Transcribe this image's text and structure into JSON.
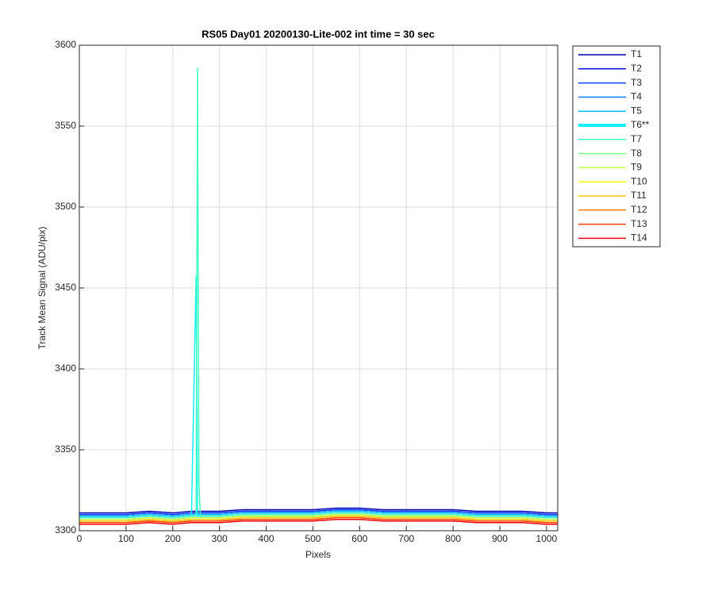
{
  "chart_data": {
    "type": "line",
    "title": "RS05 Day01 20200130-Lite-002 int time = 30 sec",
    "x_label": "Pixels",
    "y_label": "Track Mean Signal (ADU/pix)",
    "xlim": [
      0,
      1024
    ],
    "ylim": [
      3300,
      3600
    ],
    "xticks": [
      0,
      100,
      200,
      300,
      400,
      500,
      600,
      700,
      800,
      900,
      1000
    ],
    "yticks": [
      3300,
      3350,
      3400,
      3450,
      3500,
      3550,
      3600
    ],
    "grid": true,
    "legend": "outside-right",
    "x": [
      0,
      50,
      100,
      150,
      200,
      240,
      250,
      253,
      256,
      259,
      265,
      300,
      350,
      400,
      450,
      500,
      550,
      600,
      650,
      700,
      750,
      800,
      850,
      900,
      950,
      1000,
      1023
    ],
    "series": [
      {
        "name": "T1",
        "color": "#0000b4",
        "width": 1.5,
        "values": [
          3311,
          3311,
          3311,
          3312,
          3311,
          3312,
          3312,
          3312,
          3312,
          3312,
          3312,
          3312,
          3313,
          3313,
          3313,
          3313,
          3314,
          3314,
          3313,
          3313,
          3313,
          3313,
          3312,
          3312,
          3312,
          3311,
          3311
        ]
      },
      {
        "name": "T2",
        "color": "#0010dc",
        "width": 1.5,
        "values": [
          3310,
          3310,
          3310,
          3311,
          3310,
          3311,
          3311,
          3311,
          3311,
          3311,
          3311,
          3311,
          3312,
          3312,
          3312,
          3312,
          3313,
          3313,
          3312,
          3312,
          3312,
          3312,
          3311,
          3311,
          3311,
          3310,
          3310
        ]
      },
      {
        "name": "T3",
        "color": "#0040ff",
        "width": 1.5,
        "values": [
          3310,
          3310,
          3310,
          3311,
          3310,
          3311,
          3311,
          3311,
          3311,
          3311,
          3311,
          3311,
          3312,
          3312,
          3312,
          3312,
          3313,
          3313,
          3312,
          3312,
          3312,
          3312,
          3311,
          3311,
          3311,
          3310,
          3310
        ]
      },
      {
        "name": "T4",
        "color": "#0080ff",
        "width": 1.5,
        "values": [
          3309,
          3309,
          3309,
          3310,
          3309,
          3310,
          3310,
          3310,
          3310,
          3310,
          3310,
          3310,
          3311,
          3311,
          3311,
          3311,
          3312,
          3312,
          3311,
          3311,
          3311,
          3311,
          3310,
          3310,
          3310,
          3309,
          3309
        ]
      },
      {
        "name": "T5",
        "color": "#00c0ff",
        "width": 1.5,
        "values": [
          3309,
          3309,
          3309,
          3310,
          3309,
          3310,
          3310,
          3310,
          3310,
          3310,
          3310,
          3310,
          3311,
          3311,
          3311,
          3311,
          3312,
          3312,
          3311,
          3311,
          3311,
          3311,
          3310,
          3310,
          3310,
          3309,
          3309
        ]
      },
      {
        "name": "T6**",
        "color": "#10f0ff",
        "width": 4,
        "values": [
          3308,
          3308,
          3308,
          3309,
          3308,
          3309,
          3457,
          3309,
          3309,
          3309,
          3309,
          3309,
          3310,
          3310,
          3310,
          3310,
          3311,
          3311,
          3310,
          3310,
          3310,
          3310,
          3309,
          3309,
          3309,
          3308,
          3308
        ]
      },
      {
        "name": "T7",
        "color": "#40ffc0",
        "width": 1.5,
        "values": [
          3308,
          3308,
          3308,
          3309,
          3308,
          3309,
          3309,
          3586,
          3330,
          3309,
          3309,
          3309,
          3310,
          3310,
          3310,
          3310,
          3311,
          3311,
          3310,
          3310,
          3310,
          3310,
          3309,
          3309,
          3309,
          3308,
          3308
        ]
      },
      {
        "name": "T8",
        "color": "#80ff80",
        "width": 1.5,
        "values": [
          3307,
          3307,
          3307,
          3308,
          3307,
          3308,
          3308,
          3308,
          3308,
          3308,
          3308,
          3308,
          3309,
          3309,
          3309,
          3309,
          3310,
          3310,
          3309,
          3309,
          3309,
          3309,
          3308,
          3308,
          3308,
          3307,
          3307
        ]
      },
      {
        "name": "T9",
        "color": "#c0ff40",
        "width": 1.5,
        "values": [
          3307,
          3307,
          3307,
          3308,
          3307,
          3308,
          3308,
          3308,
          3308,
          3308,
          3308,
          3308,
          3309,
          3309,
          3309,
          3309,
          3310,
          3310,
          3309,
          3309,
          3309,
          3309,
          3308,
          3308,
          3308,
          3307,
          3307
        ]
      },
      {
        "name": "T10",
        "color": "#ffff00",
        "width": 1.5,
        "values": [
          3306,
          3306,
          3306,
          3307,
          3306,
          3307,
          3307,
          3307,
          3307,
          3307,
          3307,
          3307,
          3308,
          3308,
          3308,
          3308,
          3309,
          3309,
          3308,
          3308,
          3308,
          3308,
          3307,
          3307,
          3307,
          3306,
          3306
        ]
      },
      {
        "name": "T11",
        "color": "#ffc000",
        "width": 1.5,
        "values": [
          3306,
          3306,
          3306,
          3307,
          3306,
          3307,
          3307,
          3307,
          3307,
          3307,
          3307,
          3307,
          3308,
          3308,
          3308,
          3308,
          3309,
          3309,
          3308,
          3308,
          3308,
          3308,
          3307,
          3307,
          3307,
          3306,
          3306
        ]
      },
      {
        "name": "T12",
        "color": "#ff8000",
        "width": 1.5,
        "values": [
          3305,
          3305,
          3305,
          3306,
          3305,
          3306,
          3306,
          3306,
          3306,
          3306,
          3306,
          3306,
          3307,
          3307,
          3307,
          3307,
          3308,
          3308,
          3307,
          3307,
          3307,
          3307,
          3306,
          3306,
          3306,
          3305,
          3305
        ]
      },
      {
        "name": "T13",
        "color": "#ff4000",
        "width": 1.5,
        "values": [
          3305,
          3305,
          3305,
          3306,
          3305,
          3306,
          3306,
          3306,
          3306,
          3306,
          3306,
          3306,
          3307,
          3307,
          3307,
          3307,
          3308,
          3308,
          3307,
          3307,
          3307,
          3307,
          3306,
          3306,
          3306,
          3305,
          3305
        ]
      },
      {
        "name": "T14",
        "color": "#f00000",
        "width": 1.5,
        "values": [
          3304,
          3304,
          3304,
          3305,
          3304,
          3305,
          3305,
          3305,
          3305,
          3305,
          3305,
          3305,
          3306,
          3306,
          3306,
          3306,
          3307,
          3307,
          3306,
          3306,
          3306,
          3306,
          3305,
          3305,
          3305,
          3304,
          3304
        ]
      }
    ]
  }
}
